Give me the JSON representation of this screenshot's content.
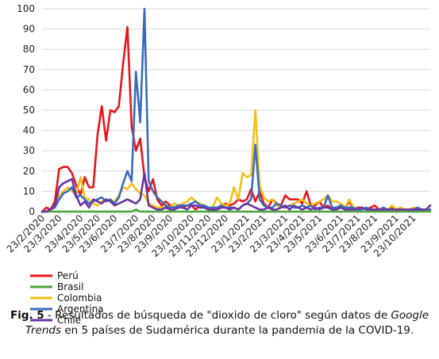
{
  "caption": {
    "fig_label": "Fig. 5",
    "text_1": " - Resultados de búsqueda de \"dioxido de cloro\" según datos de ",
    "italic_1": "Google Trends",
    "text_2": " en 5 países de Sudamérica durante la pandemia de la COVID-19."
  },
  "chart_data": {
    "type": "line",
    "title": "",
    "xlabel": "",
    "ylabel": "",
    "ylim": [
      0,
      100
    ],
    "yticks": [
      0,
      10,
      20,
      30,
      40,
      50,
      60,
      70,
      80,
      90,
      100
    ],
    "xticks": [
      "23/2/2020",
      "23/3/2020",
      "23/4/2020",
      "23/5/2020",
      "23/6/2020",
      "23/7/2020",
      "23/8/2020",
      "23/9/2020",
      "23/10/2020",
      "23/11/2020",
      "23/12/2020",
      "23/1/2021",
      "23/2/2021",
      "23/3/2021",
      "23/4/2021",
      "23/5/2021",
      "23/6/2021",
      "23/7/2021",
      "23/8/2021",
      "23/9/2021",
      "23/10/2021"
    ],
    "x_start": "2020-02-23",
    "x_step_days": 7,
    "legend_position": "bottom-left",
    "grid": {
      "horizontal": true,
      "vertical": false
    },
    "series": [
      {
        "name": "Perú",
        "color": "#e8161b",
        "values": [
          0,
          2,
          1,
          5,
          21,
          22,
          22,
          19,
          13,
          8,
          17,
          12,
          12,
          38,
          52,
          35,
          50,
          49,
          52,
          73,
          91,
          42,
          30,
          36,
          17,
          10,
          16,
          6,
          3,
          5,
          3,
          2,
          3,
          2,
          3,
          3,
          1,
          3,
          2,
          1,
          1,
          1,
          2,
          4,
          3,
          4,
          6,
          5,
          6,
          11,
          5,
          10,
          4,
          2,
          6,
          4,
          3,
          8,
          6,
          6,
          6,
          4,
          10,
          3,
          3,
          5,
          2,
          3,
          1,
          2,
          3,
          2,
          5,
          1,
          2,
          2,
          1,
          2,
          3,
          1,
          1,
          1,
          2,
          1,
          1,
          1,
          1,
          1,
          1,
          1,
          1,
          1
        ]
      },
      {
        "name": "Brasil",
        "color": "#4aa63a",
        "values": [
          0,
          0,
          0,
          0,
          0,
          0,
          0,
          0,
          0,
          0,
          0,
          0,
          0,
          0,
          0,
          0,
          0,
          0,
          0,
          0,
          0,
          0,
          1,
          0,
          0,
          0,
          0,
          0,
          0,
          0,
          0,
          0,
          0,
          0,
          0,
          0,
          0,
          0,
          0,
          0,
          0,
          0,
          0,
          0,
          0,
          0,
          0,
          0,
          0,
          0,
          0,
          0,
          0,
          0,
          0,
          0,
          0,
          0,
          0,
          0,
          0,
          0,
          0,
          0,
          0,
          0,
          0,
          0,
          0,
          0,
          0,
          0,
          0,
          0,
          0,
          0,
          0,
          0,
          0,
          0,
          0,
          0,
          0,
          0,
          0,
          0,
          0,
          0,
          0,
          0,
          0,
          0
        ]
      },
      {
        "name": "Colombia",
        "color": "#f4bf16",
        "values": [
          0,
          0,
          1,
          3,
          8,
          10,
          12,
          10,
          8,
          17,
          7,
          6,
          4,
          3,
          5,
          6,
          5,
          5,
          8,
          12,
          11,
          14,
          11,
          9,
          8,
          4,
          3,
          2,
          2,
          3,
          2,
          4,
          3,
          4,
          5,
          7,
          5,
          4,
          3,
          2,
          2,
          7,
          4,
          3,
          4,
          12,
          6,
          19,
          17,
          18,
          50,
          13,
          7,
          5,
          6,
          3,
          2,
          2,
          3,
          4,
          5,
          6,
          4,
          3,
          4,
          5,
          6,
          8,
          5,
          5,
          4,
          2,
          6,
          2,
          1,
          2,
          1,
          1,
          1,
          1,
          1,
          1,
          3,
          1,
          2,
          1,
          1,
          2,
          1,
          1,
          1,
          1
        ]
      },
      {
        "name": "Argentina",
        "color": "#3a6bc0",
        "values": [
          0,
          0,
          1,
          2,
          6,
          9,
          10,
          12,
          7,
          8,
          6,
          4,
          5,
          6,
          7,
          5,
          6,
          4,
          7,
          14,
          20,
          15,
          69,
          44,
          100,
          15,
          10,
          7,
          5,
          3,
          2,
          2,
          3,
          3,
          3,
          4,
          5,
          3,
          3,
          2,
          2,
          2,
          3,
          2,
          2,
          2,
          1,
          3,
          4,
          6,
          33,
          6,
          3,
          2,
          2,
          4,
          3,
          2,
          3,
          2,
          2,
          3,
          2,
          3,
          1,
          2,
          2,
          8,
          2,
          2,
          3,
          2,
          2,
          2,
          1,
          1,
          2,
          1,
          1,
          1,
          2,
          1,
          1,
          1,
          1,
          1,
          1,
          1,
          2,
          1,
          1,
          1
        ]
      },
      {
        "name": "Chile",
        "color": "#6a35a4",
        "values": [
          0,
          0,
          1,
          3,
          12,
          14,
          15,
          16,
          8,
          3,
          5,
          2,
          6,
          5,
          4,
          6,
          5,
          3,
          4,
          5,
          6,
          5,
          4,
          6,
          19,
          3,
          2,
          1,
          1,
          2,
          1,
          1,
          2,
          2,
          1,
          3,
          3,
          2,
          2,
          1,
          1,
          1,
          2,
          2,
          1,
          2,
          1,
          3,
          4,
          3,
          2,
          1,
          1,
          2,
          1,
          1,
          2,
          3,
          1,
          3,
          2,
          1,
          2,
          1,
          2,
          1,
          2,
          2,
          1,
          1,
          2,
          1,
          1,
          1,
          1,
          2,
          1,
          1,
          1,
          1,
          1,
          1,
          1,
          1,
          1,
          1,
          1,
          1,
          1,
          1,
          1,
          3
        ]
      }
    ]
  }
}
